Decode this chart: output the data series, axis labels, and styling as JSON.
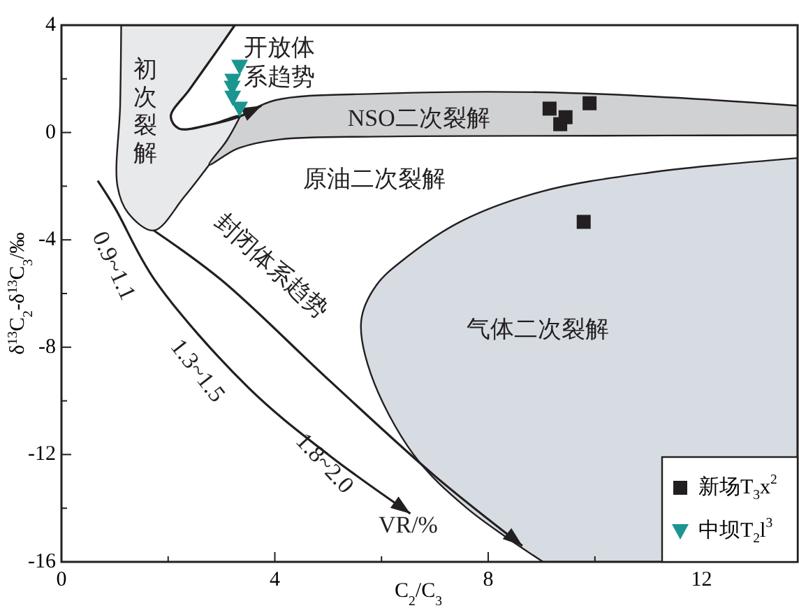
{
  "chart_data": {
    "type": "scatter",
    "xlabel": "C$_{2}$/C$_{3}$",
    "ylabel": "δ$^{13}$C$_{2}$-δ$^{13}$C$_{3}$/‰",
    "xlim": [
      0,
      13.8
    ],
    "ylim": [
      -16,
      4
    ],
    "xticks": [
      0,
      {
        "value": 2,
        "label": null
      },
      4,
      {
        "value": 6,
        "label": null
      },
      8,
      {
        "value": 10,
        "label": null
      },
      12
    ],
    "yticks": [
      -16,
      {
        "value": -14,
        "label": null
      },
      -12,
      {
        "value": -10,
        "label": null
      },
      -8,
      {
        "value": -6,
        "label": null
      },
      -4,
      {
        "value": -2,
        "label": null
      },
      0,
      {
        "value": 2,
        "label": null
      },
      4
    ],
    "grid": false,
    "legend": "bottom right",
    "series": [
      {
        "name": "新场T$_{3}$x$^{2}$",
        "color": "#231f20",
        "marker": "square",
        "x": [
          9.15,
          9.45,
          9.35,
          9.9,
          9.79
        ],
        "values": [
          0.89,
          0.57,
          0.31,
          1.09,
          -3.33
        ]
      },
      {
        "name": "中坝T$_{2}$l$^{3}$",
        "color": "#1b9590",
        "marker": "triangle",
        "x": [
          3.34,
          3.21,
          3.2,
          3.21,
          3.34
        ],
        "values": [
          2.45,
          1.93,
          1.67,
          1.3,
          0.89
        ]
      }
    ],
    "annotations": [
      "初次裂解",
      "开放体系趋势",
      "NSO二次裂解",
      "原油二次裂解",
      "封闭体系趋势",
      "气体二次裂解",
      "0.9~1.1",
      "1.3~1.5",
      "1.8~2.0",
      "VR/%"
    ]
  }
}
